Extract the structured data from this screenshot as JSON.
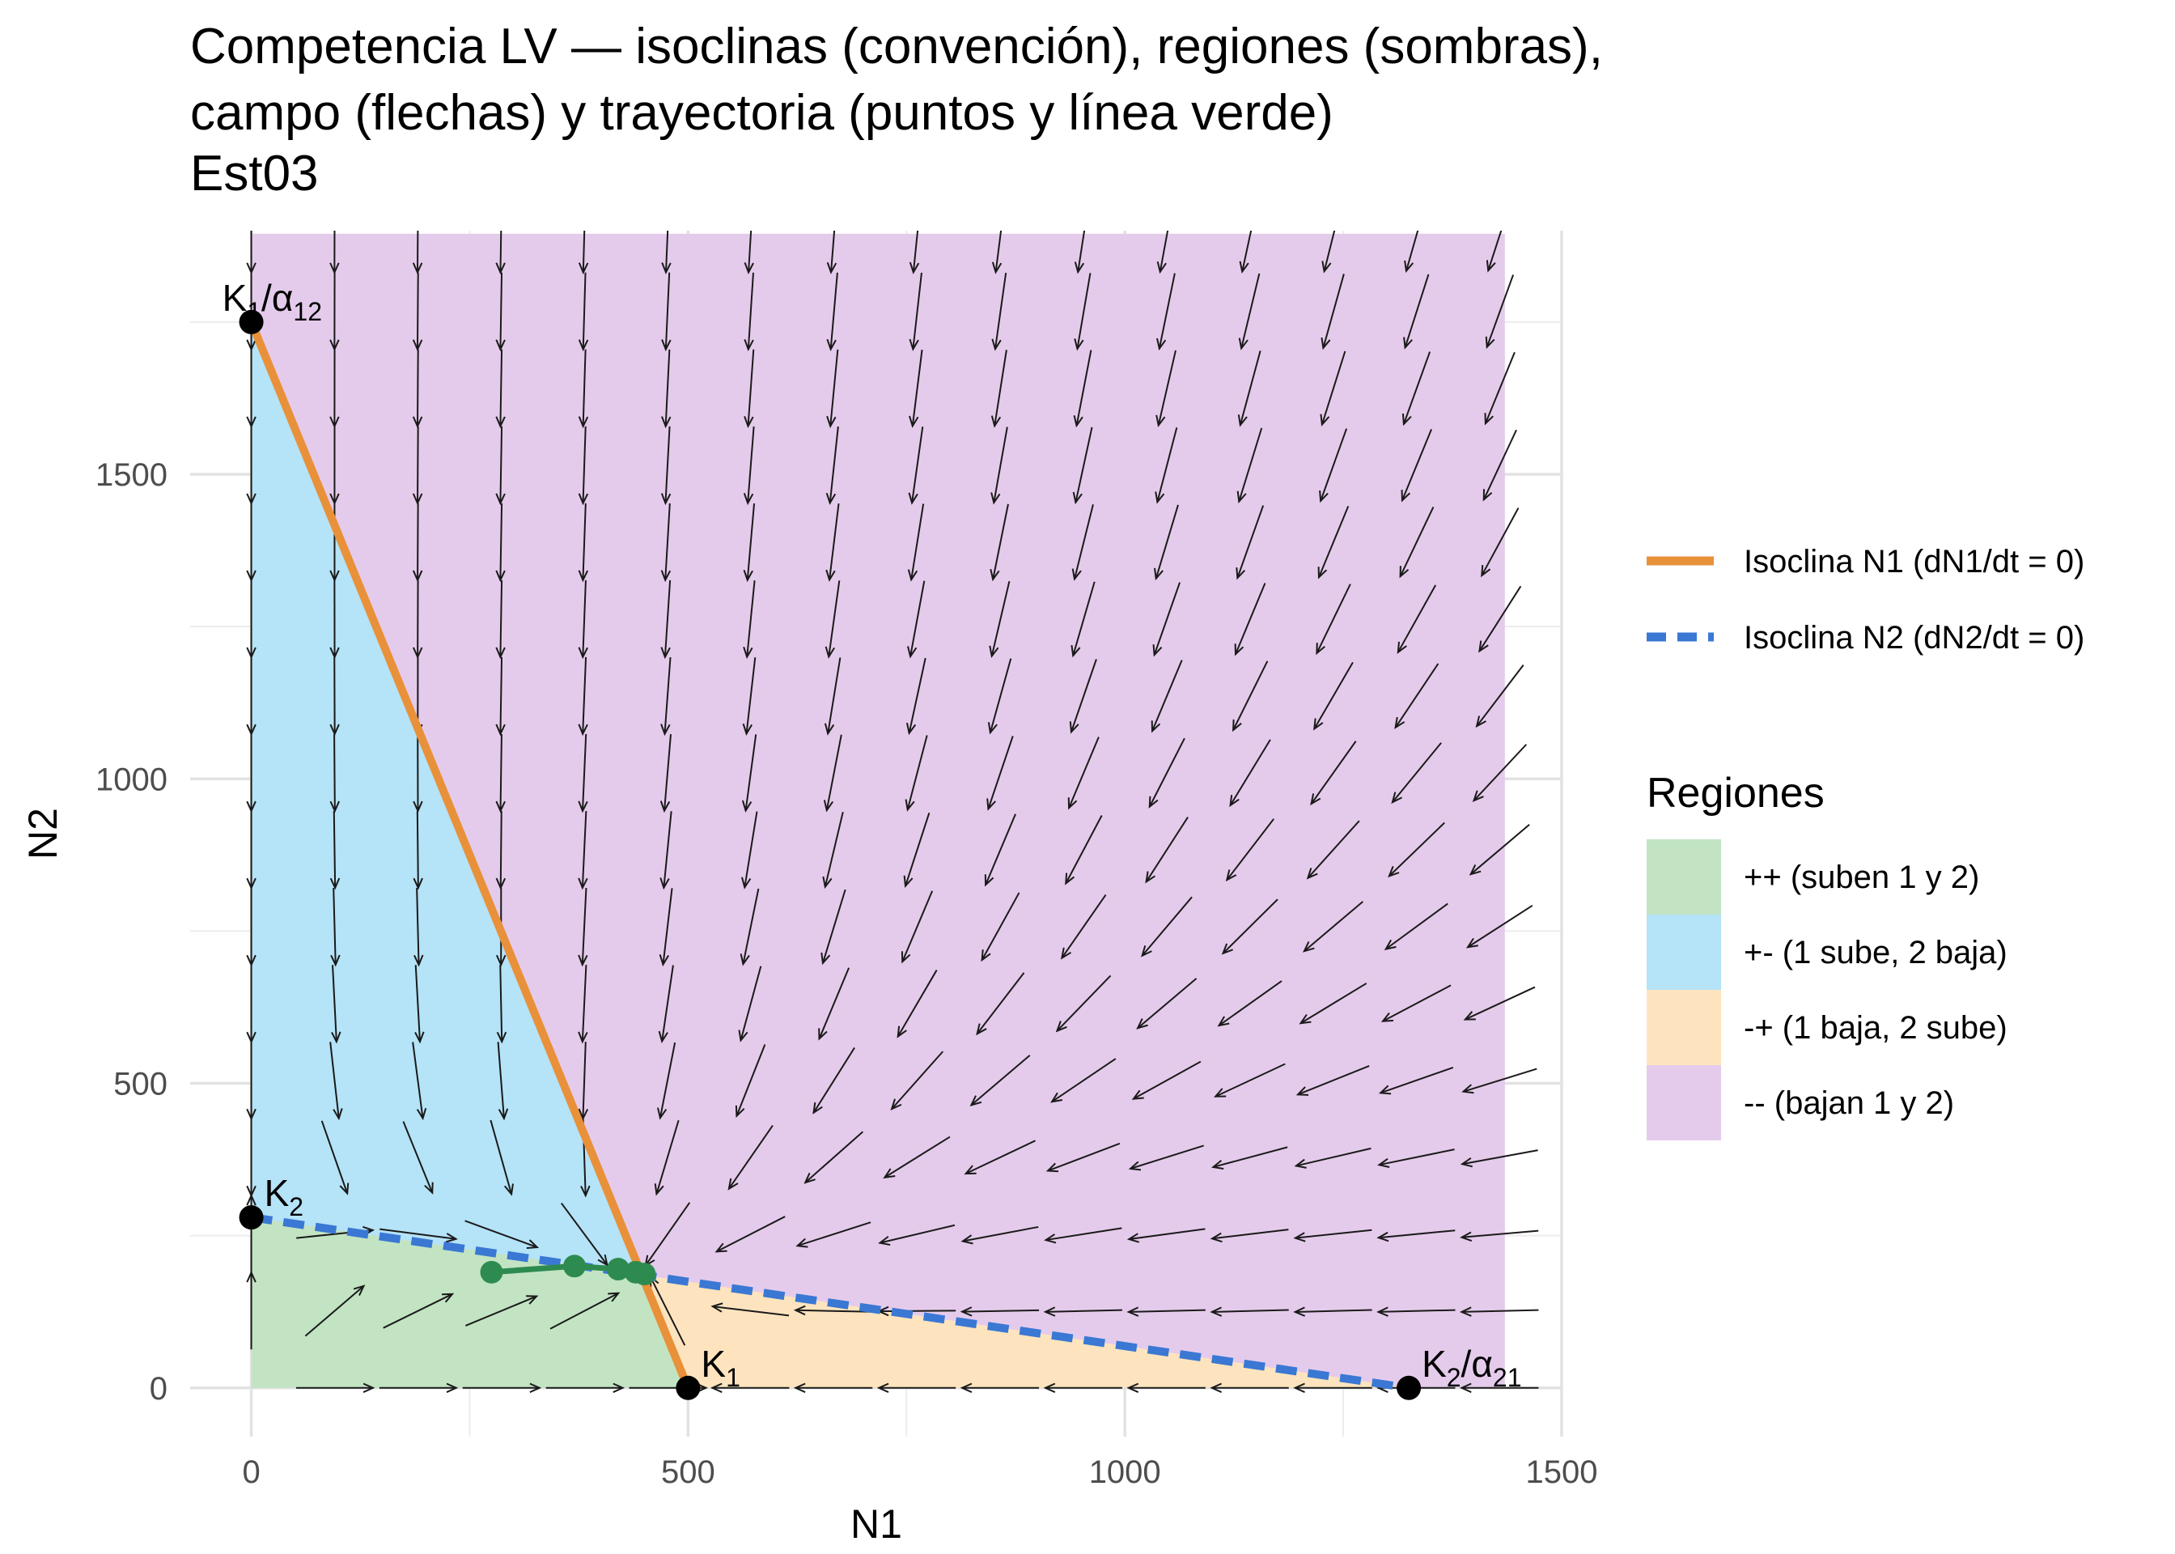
{
  "chart_data": {
    "type": "line",
    "title_lines": [
      "Competencia LV — isoclinas (convención), regiones (sombras),",
      " campo (flechas) y trayectoria (puntos y línea verde)",
      " Est03"
    ],
    "xlabel": "N1",
    "ylabel": "N2",
    "xlim": [
      -70,
      1500
    ],
    "ylim": [
      -80,
      1900
    ],
    "x_ticks": [
      0,
      500,
      1000,
      1500
    ],
    "y_ticks": [
      0,
      500,
      1000,
      1500
    ],
    "x_tick_labels": [
      "0",
      "500",
      "1000",
      "1500"
    ],
    "y_tick_labels": [
      "0",
      "500",
      "1000",
      "1500"
    ],
    "grid": true,
    "legend_position": "right",
    "params": {
      "K1": 500,
      "K2": 280,
      "K1_over_alpha12": 1750,
      "K2_over_alpha21": 1325
    },
    "region_extent": {
      "xmax": 1435,
      "ymax": 1895
    },
    "series": [
      {
        "name": "Isoclina N1 (dN1/dt = 0)",
        "x": [
          0,
          500
        ],
        "y": [
          1750,
          0
        ],
        "color": "#e8913a",
        "style": "solid"
      },
      {
        "name": "Isoclina N2 (dN2/dt = 0)",
        "x": [
          0,
          1325
        ],
        "y": [
          280,
          0
        ],
        "color": "#3a78d4",
        "style": "dashed"
      }
    ],
    "regions": {
      "title": "Regiones",
      "items": [
        {
          "key": "pp",
          "label": "++ (suben 1 y 2)",
          "color": "#c2e4c3"
        },
        {
          "key": "pm",
          "label": "+- (1 sube, 2 baja)",
          "color": "#b5e3f7"
        },
        {
          "key": "mp",
          "label": "-+ (1 baja, 2 sube)",
          "color": "#fee4be"
        },
        {
          "key": "mm",
          "label": "-- (bajan 1 y 2)",
          "color": "#e5cbeb"
        }
      ]
    },
    "trajectory": {
      "color": "#2e8b50",
      "points": [
        [
          275,
          190
        ],
        [
          370,
          200
        ],
        [
          420,
          195
        ],
        [
          440,
          190
        ],
        [
          450,
          187
        ]
      ]
    },
    "annotations": [
      {
        "x": 0,
        "y": 1750,
        "main": "K",
        "sub": "1",
        "rest": "/α",
        "sub2": "12"
      },
      {
        "x": 0,
        "y": 280,
        "main": "K",
        "sub": "2",
        "rest": "",
        "sub2": ""
      },
      {
        "x": 500,
        "y": 0,
        "main": "K",
        "sub": "1",
        "rest": "",
        "sub2": ""
      },
      {
        "x": 1325,
        "y": 0,
        "main": "K",
        "sub": "2",
        "rest": "/α",
        "sub2": "21"
      }
    ],
    "vector_field": {
      "x0": 0,
      "dx": 95.3,
      "nx": 16,
      "y0": 0,
      "dy": 126.3,
      "ny": 16,
      "r1": 1,
      "r2": 1,
      "arrow_length": 95
    }
  }
}
